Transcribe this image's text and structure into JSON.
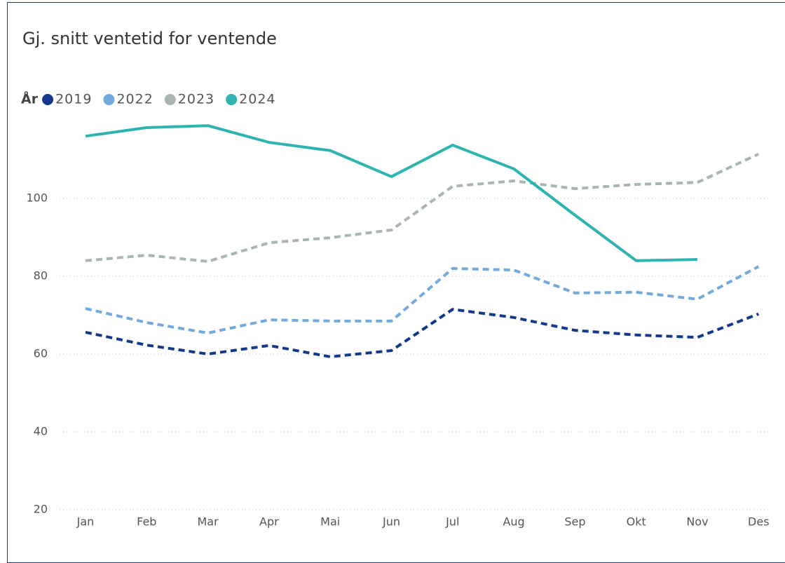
{
  "chart_data": {
    "type": "line",
    "title": "Gj. snitt ventetid for ventende",
    "legend_title": "År",
    "categories": [
      "Jan",
      "Feb",
      "Mar",
      "Apr",
      "Mai",
      "Jun",
      "Jul",
      "Aug",
      "Sep",
      "Okt",
      "Nov",
      "Des"
    ],
    "series": [
      {
        "name": "2019",
        "color": "#12398a",
        "line_style": "dashed",
        "values": [
          65.6,
          62.3,
          60.0,
          62.2,
          59.3,
          60.9,
          71.5,
          69.4,
          66.1,
          64.9,
          64.3,
          70.3
        ]
      },
      {
        "name": "2022",
        "color": "#74a9dc",
        "line_style": "dashed",
        "values": [
          71.7,
          68.1,
          65.4,
          68.8,
          68.5,
          68.5,
          82.0,
          81.6,
          75.7,
          75.9,
          74.1,
          82.5
        ]
      },
      {
        "name": "2023",
        "color": "#a9b4b4",
        "line_style": "dashed",
        "values": [
          84.0,
          85.4,
          83.8,
          88.6,
          89.9,
          91.9,
          103.1,
          104.5,
          102.5,
          103.6,
          104.1,
          111.4
        ]
      },
      {
        "name": "2024",
        "color": "#2db3b0",
        "line_style": "solid",
        "values": [
          116.0,
          118.2,
          118.7,
          114.4,
          112.3,
          105.6,
          113.7,
          107.6,
          95.7,
          84.0,
          84.3,
          null
        ]
      }
    ],
    "ylim": [
      20,
      120
    ],
    "yticks": [
      20,
      40,
      60,
      80,
      100
    ],
    "grid": true,
    "legend_position": "top-left"
  }
}
